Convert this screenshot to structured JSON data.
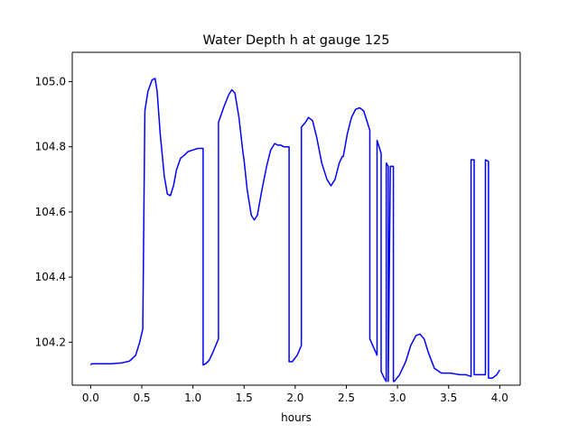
{
  "chart_data": {
    "type": "line",
    "title": "Water Depth h at gauge 125",
    "xlabel": "hours",
    "ylabel": "",
    "xlim": [
      -0.18,
      4.2
    ],
    "ylim": [
      104.068,
      105.09
    ],
    "xticks": [
      0.0,
      0.5,
      1.0,
      1.5,
      2.0,
      2.5,
      3.0,
      3.5,
      4.0
    ],
    "xtick_labels": [
      "0.0",
      "0.5",
      "1.0",
      "1.5",
      "2.0",
      "2.5",
      "3.0",
      "3.5",
      "4.0"
    ],
    "yticks": [
      104.2,
      104.4,
      104.6,
      104.8,
      105.0
    ],
    "ytick_labels": [
      "104.2",
      "104.4",
      "104.6",
      "104.8",
      "105.0"
    ],
    "grid": false,
    "legend": "none",
    "series": [
      {
        "color": "#0000ff",
        "x": [
          0.0,
          0.01,
          0.1,
          0.2,
          0.3,
          0.38,
          0.44,
          0.48,
          0.51,
          0.53,
          0.53,
          0.56,
          0.6,
          0.63,
          0.65,
          0.68,
          0.72,
          0.75,
          0.78,
          0.81,
          0.84,
          0.88,
          0.92,
          0.95,
          1.0,
          1.05,
          1.1,
          1.1,
          1.13,
          1.16,
          1.19,
          1.25,
          1.25,
          1.3,
          1.35,
          1.38,
          1.41,
          1.45,
          1.49,
          1.5,
          1.53,
          1.57,
          1.6,
          1.63,
          1.67,
          1.72,
          1.76,
          1.8,
          1.83,
          1.86,
          1.89,
          1.92,
          1.94,
          1.94,
          1.97,
          2.02,
          2.06,
          2.06,
          2.1,
          2.13,
          2.17,
          2.21,
          2.26,
          2.31,
          2.35,
          2.39,
          2.43,
          2.46,
          2.47,
          2.51,
          2.55,
          2.59,
          2.63,
          2.67,
          2.71,
          2.73,
          2.73,
          2.8,
          2.8,
          2.84,
          2.84,
          2.87,
          2.89,
          2.89,
          2.91,
          2.91,
          2.93,
          2.93,
          2.96,
          2.96,
          2.97,
          3.02,
          3.08,
          3.13,
          3.18,
          3.22,
          3.26,
          3.3,
          3.36,
          3.43,
          3.52,
          3.61,
          3.67,
          3.72,
          3.72,
          3.75,
          3.75,
          3.86,
          3.86,
          3.89,
          3.89,
          3.93,
          3.97,
          4.0
        ],
        "y": [
          104.13,
          104.134,
          104.134,
          104.134,
          104.136,
          104.142,
          104.16,
          104.2,
          104.24,
          104.91,
          104.91,
          104.97,
          105.005,
          105.01,
          104.97,
          104.84,
          104.71,
          104.655,
          104.65,
          104.68,
          104.73,
          104.765,
          104.775,
          104.785,
          104.79,
          104.795,
          104.795,
          104.13,
          104.135,
          104.145,
          104.165,
          104.21,
          104.875,
          104.92,
          104.96,
          104.975,
          104.965,
          104.89,
          104.78,
          104.76,
          104.67,
          104.59,
          104.575,
          104.59,
          104.66,
          104.74,
          104.79,
          104.81,
          104.805,
          104.805,
          104.8,
          104.8,
          104.8,
          104.14,
          104.14,
          104.16,
          104.19,
          104.86,
          104.875,
          104.89,
          104.88,
          104.83,
          104.75,
          104.7,
          104.68,
          104.7,
          104.75,
          104.77,
          104.77,
          104.84,
          104.89,
          104.915,
          104.92,
          104.91,
          104.87,
          104.85,
          104.21,
          104.16,
          104.82,
          104.78,
          104.11,
          104.09,
          104.08,
          104.75,
          104.74,
          104.08,
          104.74,
          104.74,
          104.74,
          104.08,
          104.08,
          104.1,
          104.14,
          104.19,
          104.22,
          104.225,
          104.21,
          104.17,
          104.12,
          104.105,
          104.105,
          104.1,
          104.1,
          104.095,
          104.76,
          104.76,
          104.1,
          104.1,
          104.76,
          104.755,
          104.09,
          104.09,
          104.1,
          104.115
        ]
      }
    ]
  }
}
